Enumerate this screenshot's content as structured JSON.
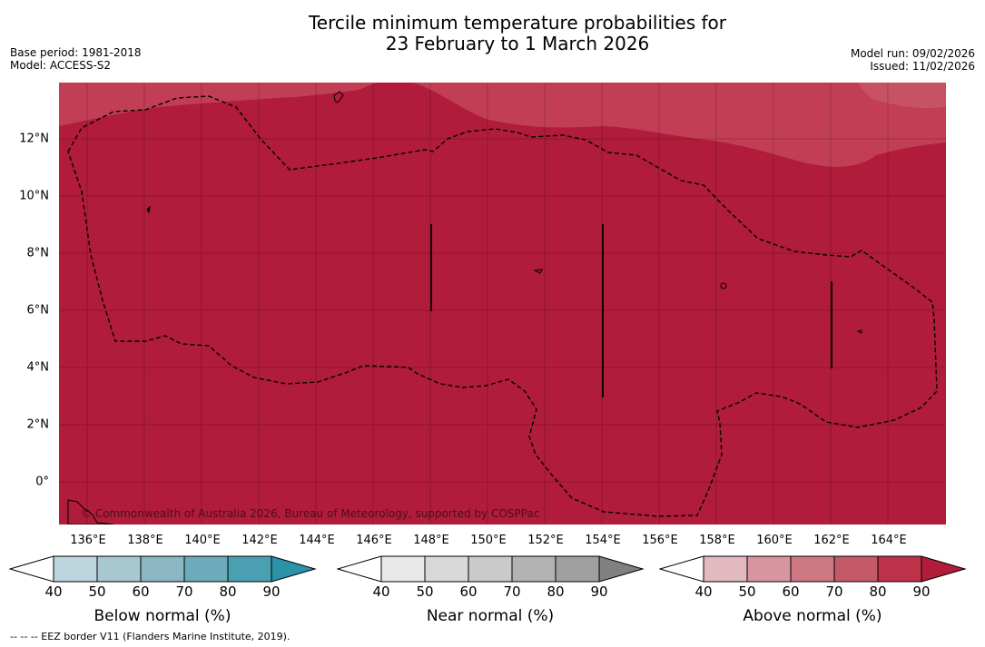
{
  "header": {
    "title_line1": "Tercile minimum temperature probabilities for",
    "title_line2": "23 February to 1 March 2026",
    "base_period": "Base period: 1981-2018",
    "model": "Model: ACCESS-S2",
    "model_run": "Model run: 09/02/2026",
    "issued": "Issued: 11/02/2026"
  },
  "map": {
    "lon_range": [
      135,
      166
    ],
    "lat_range": [
      -1.5,
      14
    ],
    "lat_ticks": [
      "12°N",
      "10°N",
      "8°N",
      "6°N",
      "4°N",
      "2°N",
      "0°"
    ],
    "lon_ticks": [
      "136°E",
      "138°E",
      "140°E",
      "142°E",
      "144°E",
      "146°E",
      "148°E",
      "150°E",
      "152°E",
      "154°E",
      "156°E",
      "158°E",
      "160°E",
      "162°E",
      "164°E"
    ],
    "copyright": "© Commonwealth of Australia 2026, Bureau of Meteorology, supported by COSPPac",
    "fill_category": "Above normal",
    "fill_probability_band": "90+",
    "colors": {
      "above_90": "#b01c3a",
      "above_80": "#c13e54"
    }
  },
  "colorbars": [
    {
      "title": "Below normal (%)",
      "ticks": [
        "40",
        "50",
        "60",
        "70",
        "80",
        "90"
      ],
      "colors": [
        "#ffffff",
        "#bdd5dc",
        "#a7c8cf",
        "#8bb7c3",
        "#6dabba",
        "#4aa0b2",
        "#2a93a8"
      ]
    },
    {
      "title": "Near normal (%)",
      "ticks": [
        "40",
        "50",
        "60",
        "70",
        "80",
        "90"
      ],
      "colors": [
        "#ffffff",
        "#e8e8e8",
        "#d9d9d9",
        "#cacaca",
        "#b3b3b3",
        "#a0a0a0",
        "#808080"
      ]
    },
    {
      "title": "Above normal (%)",
      "ticks": [
        "40",
        "50",
        "60",
        "70",
        "80",
        "90"
      ],
      "colors": [
        "#ffffff",
        "#e2b9c0",
        "#d7969f",
        "#cd7883",
        "#c45a68",
        "#bc3249",
        "#b01c3a"
      ]
    }
  ],
  "footnote": "--  --  -- EEZ border V11 (Flanders Marine Institute, 2019)."
}
